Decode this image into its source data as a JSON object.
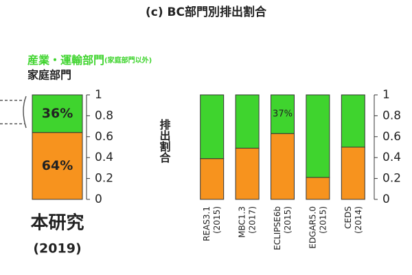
{
  "chart_data": [
    {
      "type": "stacked-bar",
      "title": "(c) BC部門別排出割合",
      "categories": [
        "本研究"
      ],
      "category_years": [
        "(2019)"
      ],
      "series": [
        {
          "name": "家庭部門",
          "color": "#f7931e",
          "values": [
            0.64
          ],
          "value_labels": [
            "64%"
          ]
        },
        {
          "name": "産業・運輸部門",
          "name_note": "(家庭部門以外)",
          "color": "#3fd42e",
          "values": [
            0.36
          ],
          "value_labels": [
            "36%"
          ]
        }
      ],
      "ylim": [
        0,
        1
      ],
      "yticks": [
        0,
        0.2,
        0.4,
        0.6,
        0.8,
        1
      ]
    },
    {
      "type": "stacked-bar",
      "ylabel": "排出割合",
      "categories": [
        "REAS3.1",
        "MBC1.3",
        "ECLIPSE6b",
        "EDGAR5.0",
        "CEDS"
      ],
      "category_years": [
        "(2015)",
        "(2017)",
        "(2015)",
        "(2015)",
        "(2014)"
      ],
      "series": [
        {
          "color": "#f7931e",
          "values": [
            0.39,
            0.49,
            0.63,
            0.21,
            0.5
          ]
        },
        {
          "color": "#3fd42e",
          "values": [
            0.61,
            0.51,
            0.37,
            0.79,
            0.5
          ],
          "value_labels": [
            null,
            null,
            "37%",
            null,
            null
          ]
        }
      ],
      "ylim": [
        0,
        1
      ],
      "yticks": [
        0,
        0.2,
        0.4,
        0.6,
        0.8,
        1
      ]
    }
  ]
}
